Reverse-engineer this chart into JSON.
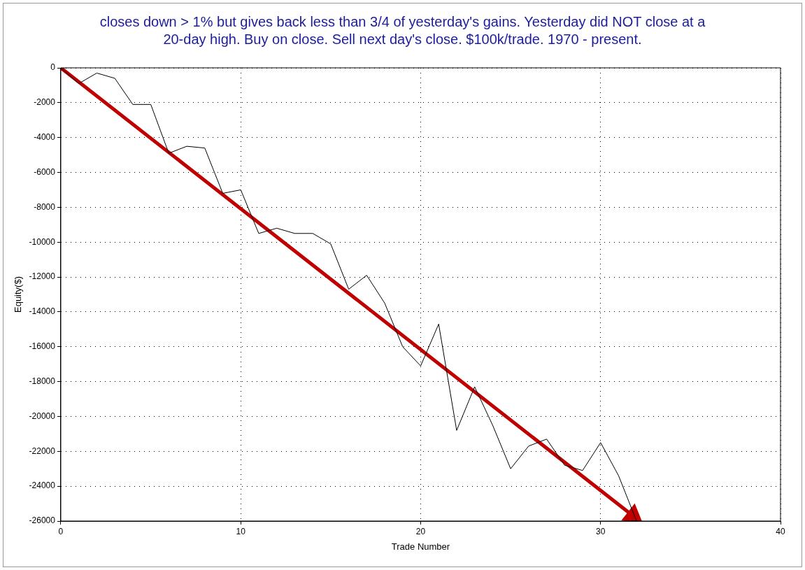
{
  "chart_data": {
    "type": "line",
    "title": "closes down > 1% but gives back less than 3/4 of yesterday's gains. Yesterday did NOT close at a 20-day high. Buy on close. Sell next day's close. $100k/trade. 1970 - present.",
    "xlabel": "Trade Number",
    "ylabel": "Equity($)",
    "x": [
      0,
      1,
      2,
      3,
      4,
      5,
      6,
      7,
      8,
      9,
      10,
      11,
      12,
      13,
      14,
      15,
      16,
      17,
      18,
      19,
      20,
      21,
      22,
      23,
      24,
      25,
      26,
      27,
      28,
      29,
      30,
      31,
      32
    ],
    "series": [
      {
        "color": "#000000",
        "values": [
          0,
          -900,
          -300,
          -600,
          -2100,
          -2100,
          -4900,
          -4500,
          -4600,
          -7200,
          -7000,
          -9500,
          -9200,
          -9500,
          -9500,
          -10100,
          -12700,
          -11900,
          -13500,
          -16000,
          -17100,
          -14700,
          -20800,
          -18300,
          -20500,
          -23000,
          -21700,
          -21300,
          -22800,
          -23100,
          -21500,
          -23400,
          -26000
        ]
      },
      {
        "type": "line",
        "color": "#c00000",
        "marker": "triangle",
        "x": [
          0,
          31.8
        ],
        "values": [
          0,
          -25700
        ]
      }
    ],
    "xlim": [
      0,
      40
    ],
    "xticks": [
      0,
      10,
      20,
      30,
      40
    ],
    "ylim": [
      -26000,
      0
    ],
    "yticks": [
      -26000,
      -24000,
      -22000,
      -20000,
      -18000,
      -16000,
      -14000,
      -12000,
      -10000,
      -8000,
      -6000,
      -4000,
      -2000,
      0
    ],
    "grid": true,
    "legend": false,
    "line_style": "solid"
  }
}
